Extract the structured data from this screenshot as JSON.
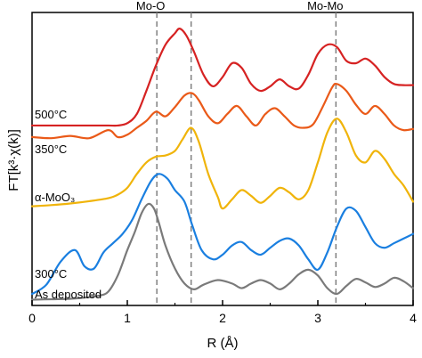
{
  "chart_data": {
    "type": "line",
    "xlabel": "R (Å)",
    "ylabel": "FT[k³·χ(k)]",
    "xlim": [
      0,
      4
    ],
    "x_ticks": [
      "0",
      "1",
      "2",
      "3",
      "4"
    ],
    "grid": false,
    "reference_lines": [
      {
        "label": "Mo-O",
        "x": 1.31
      },
      {
        "label": "",
        "x": 1.67
      },
      {
        "label": "Mo-Mo",
        "x": 3.19
      }
    ],
    "series": [
      {
        "name": "As deposited",
        "color": "#7a7a7a",
        "x": [
          0,
          0.2,
          0.4,
          0.55,
          0.7,
          0.8,
          0.9,
          1.0,
          1.08,
          1.15,
          1.22,
          1.28,
          1.33,
          1.4,
          1.5,
          1.6,
          1.7,
          1.8,
          1.95,
          2.1,
          2.2,
          2.3,
          2.4,
          2.5,
          2.6,
          2.7,
          2.8,
          2.9,
          3.0,
          3.1,
          3.2,
          3.3,
          3.4,
          3.5,
          3.6,
          3.7,
          3.8,
          3.9,
          4.0
        ],
        "y": [
          0.25,
          0.27,
          0.29,
          0.34,
          0.42,
          0.6,
          1.3,
          2.4,
          3.2,
          4.0,
          4.4,
          4.2,
          3.6,
          2.6,
          1.6,
          0.95,
          0.7,
          0.9,
          1.1,
          0.95,
          0.75,
          0.95,
          1.1,
          0.95,
          0.7,
          0.95,
          1.35,
          1.55,
          1.3,
          0.75,
          0.5,
          0.85,
          1.15,
          1.0,
          0.8,
          0.95,
          1.2,
          1.05,
          0.75
        ]
      },
      {
        "name": "300°C",
        "color": "#1a7fe0",
        "x": [
          0,
          0.15,
          0.3,
          0.45,
          0.55,
          0.65,
          0.75,
          0.85,
          0.95,
          1.05,
          1.15,
          1.25,
          1.33,
          1.42,
          1.5,
          1.6,
          1.68,
          1.78,
          1.9,
          2.0,
          2.1,
          2.2,
          2.3,
          2.4,
          2.5,
          2.6,
          2.7,
          2.8,
          2.9,
          3.0,
          3.1,
          3.2,
          3.3,
          3.4,
          3.5,
          3.6,
          3.7,
          3.8,
          3.9,
          4.0
        ],
        "y": [
          0.5,
          0.9,
          1.9,
          2.4,
          1.7,
          1.6,
          2.3,
          2.7,
          3.1,
          3.7,
          4.6,
          5.4,
          5.7,
          5.5,
          5.0,
          4.5,
          3.5,
          2.4,
          2.0,
          2.2,
          2.6,
          2.75,
          2.4,
          2.2,
          2.5,
          2.8,
          2.9,
          2.6,
          2.0,
          1.55,
          2.3,
          3.4,
          4.2,
          4.1,
          3.4,
          2.7,
          2.5,
          2.7,
          2.9,
          3.1
        ]
      },
      {
        "name": "α-MoO₃",
        "color": "#f0b40a",
        "x": [
          0,
          0.2,
          0.4,
          0.6,
          0.8,
          0.9,
          1.0,
          1.1,
          1.2,
          1.3,
          1.4,
          1.5,
          1.58,
          1.67,
          1.75,
          1.85,
          1.95,
          2.0,
          2.1,
          2.2,
          2.3,
          2.4,
          2.5,
          2.6,
          2.7,
          2.8,
          2.9,
          3.0,
          3.1,
          3.2,
          3.3,
          3.4,
          3.5,
          3.6,
          3.7,
          3.8,
          3.9,
          4.0
        ],
        "y": [
          4.3,
          4.35,
          4.42,
          4.52,
          4.65,
          4.8,
          5.1,
          5.7,
          6.2,
          6.45,
          6.5,
          6.7,
          7.2,
          7.7,
          7.1,
          5.7,
          4.7,
          4.2,
          4.6,
          5.0,
          4.75,
          4.45,
          4.75,
          5.1,
          4.9,
          4.6,
          5.0,
          6.2,
          7.5,
          8.1,
          7.5,
          6.5,
          6.2,
          6.7,
          6.35,
          5.7,
          5.2,
          4.5
        ]
      },
      {
        "name": "350°C",
        "color": "#ea5a19",
        "x": [
          0,
          0.2,
          0.4,
          0.6,
          0.8,
          0.9,
          1.0,
          1.1,
          1.2,
          1.3,
          1.4,
          1.5,
          1.6,
          1.68,
          1.75,
          1.85,
          1.95,
          2.05,
          2.15,
          2.25,
          2.35,
          2.45,
          2.55,
          2.65,
          2.75,
          2.85,
          2.95,
          3.05,
          3.15,
          3.2,
          3.3,
          3.4,
          3.5,
          3.6,
          3.7,
          3.8,
          3.9,
          4.0
        ],
        "y": [
          7.3,
          7.25,
          7.35,
          7.25,
          7.6,
          7.3,
          7.4,
          7.7,
          8.0,
          8.4,
          8.2,
          8.6,
          9.1,
          9.2,
          8.9,
          8.2,
          7.9,
          8.3,
          8.65,
          8.2,
          7.8,
          8.3,
          8.55,
          8.2,
          7.8,
          7.7,
          7.85,
          8.6,
          9.45,
          9.6,
          9.3,
          8.7,
          8.3,
          8.65,
          8.3,
          7.8,
          7.6,
          7.65
        ]
      },
      {
        "name": "500°C",
        "color": "#d62222",
        "x": [
          0,
          0.2,
          0.4,
          0.6,
          0.8,
          0.9,
          1.0,
          1.1,
          1.2,
          1.3,
          1.4,
          1.5,
          1.55,
          1.62,
          1.7,
          1.8,
          1.9,
          2.0,
          2.1,
          2.2,
          2.3,
          2.4,
          2.5,
          2.6,
          2.7,
          2.8,
          2.9,
          3.0,
          3.1,
          3.2,
          3.3,
          3.4,
          3.5,
          3.6,
          3.7,
          3.8,
          3.9,
          4.0
        ],
        "y": [
          7.8,
          7.8,
          7.8,
          7.8,
          7.8,
          7.8,
          7.9,
          8.3,
          9.3,
          10.4,
          11.3,
          11.8,
          12.0,
          11.7,
          11.0,
          10.0,
          9.5,
          9.9,
          10.5,
          10.3,
          9.6,
          9.3,
          9.5,
          9.8,
          9.5,
          9.4,
          10.0,
          10.9,
          11.3,
          11.2,
          10.6,
          10.5,
          10.7,
          10.4,
          9.9,
          9.6,
          9.55,
          9.55
        ]
      }
    ],
    "annotations": [
      {
        "text": "500°C"
      },
      {
        "text": "350°C"
      },
      {
        "text": "α-MoO₃"
      },
      {
        "text": "300°C"
      },
      {
        "text": "As deposited"
      }
    ]
  }
}
